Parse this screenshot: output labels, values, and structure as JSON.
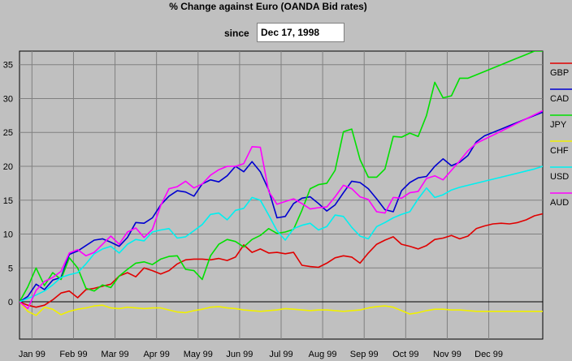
{
  "header": {
    "title": "% Change against Euro (OANDA Bid rates)",
    "since_label": "since",
    "since_value": "Dec 17, 1998"
  },
  "chart_data": {
    "type": "line",
    "title": "% Change against Euro (OANDA Bid rates)",
    "xlabel": "",
    "ylabel": "",
    "xlim": [
      0,
      12.6
    ],
    "ylim": [
      -5.5,
      37
    ],
    "y_ticks": [
      0,
      5,
      10,
      15,
      20,
      25,
      30,
      35
    ],
    "x_tick_labels": [
      "Jan 99",
      "Feb 99",
      "Mar 99",
      "Apr 99",
      "May 99",
      "Jun 99",
      "Jul 99",
      "Aug 99",
      "Sep 99",
      "Oct 99",
      "Nov 99",
      "Dec 99"
    ],
    "x_tick_positions": [
      0.3,
      1.3,
      2.3,
      3.3,
      4.3,
      5.3,
      6.3,
      7.3,
      8.3,
      9.3,
      10.3,
      11.3
    ],
    "grid": true,
    "legend_position": "right",
    "x": [
      0,
      0.2,
      0.4,
      0.6,
      0.8,
      1,
      1.2,
      1.4,
      1.6,
      1.8,
      2,
      2.2,
      2.4,
      2.6,
      2.8,
      3,
      3.2,
      3.4,
      3.6,
      3.8,
      4,
      4.2,
      4.4,
      4.6,
      4.8,
      5,
      5.2,
      5.4,
      5.6,
      5.8,
      6,
      6.2,
      6.4,
      6.6,
      6.8,
      7,
      7.2,
      7.4,
      7.6,
      7.8,
      8,
      8.2,
      8.4,
      8.6,
      8.8,
      9,
      9.2,
      9.4,
      9.6,
      9.8,
      10,
      10.2,
      10.4,
      10.6,
      10.8,
      11,
      11.2,
      11.4,
      11.6,
      11.8,
      12,
      12.2,
      12.4,
      12.6
    ],
    "series": [
      {
        "name": "GBP",
        "color": "#e00000",
        "values": [
          0,
          -0.5,
          -0.8,
          -0.5,
          0.3,
          1.3,
          1.6,
          0.6,
          1.8,
          2,
          2.3,
          2.6,
          3.8,
          4.3,
          3.7,
          5,
          4.6,
          4.1,
          4.6,
          5.6,
          6.2,
          6.3,
          6.3,
          6.2,
          6.4,
          6.1,
          6.6,
          8.4,
          7.3,
          7.8,
          7.2,
          7.3,
          7.1,
          7.3,
          5.4,
          5.2,
          5.1,
          5.7,
          6.5,
          6.8,
          6.6,
          5.7,
          7.2,
          8.5,
          9.1,
          9.6,
          8.5,
          8.2,
          7.8,
          8.3,
          9.2,
          9.4,
          9.8,
          9.3,
          9.7,
          10.8,
          11.2,
          11.5,
          11.6,
          11.5,
          11.7,
          12.1,
          12.7,
          13
        ]
      },
      {
        "name": "CAD",
        "color": "#0000d0",
        "values": [
          0,
          0.8,
          2.6,
          1.8,
          3.2,
          3.6,
          7,
          7.5,
          8.3,
          9.1,
          9.3,
          8.8,
          8.2,
          9.5,
          11.7,
          11.6,
          12.4,
          14.3,
          15.6,
          16.4,
          16.2,
          15.6,
          17.4,
          18,
          17.7,
          18.6,
          20,
          19.2,
          20.7,
          19.2,
          16.5,
          12.4,
          12.6,
          14.5,
          15.3,
          15.5,
          14.5,
          13.4,
          14.3,
          16.1,
          17.8,
          17.6,
          16.7,
          15.2,
          13.6,
          13.3,
          16.4,
          17.6,
          18.3,
          18.5,
          20,
          21.1,
          20.1,
          20.6,
          21.6,
          23.6,
          24.5,
          25,
          25.5,
          26,
          26.5,
          27,
          27.5,
          28
        ]
      },
      {
        "name": "JPY",
        "color": "#00e000",
        "values": [
          0,
          2.2,
          5,
          2.4,
          4.3,
          3.3,
          6.5,
          5,
          2,
          1.6,
          2.5,
          2.1,
          3.8,
          4.8,
          5.7,
          5.9,
          5.5,
          6.3,
          6.7,
          6.8,
          4.8,
          4.6,
          3.3,
          6.8,
          8.5,
          9.2,
          8.9,
          8.1,
          9.2,
          9.8,
          10.8,
          10.1,
          10.3,
          10.7,
          13.5,
          16.7,
          17.3,
          17.5,
          19.4,
          25.1,
          25.5,
          21,
          18.4,
          18.4,
          19.6,
          24.4,
          24.3,
          24.9,
          24.4,
          27.5,
          32.4,
          30.1,
          30.4,
          33,
          33,
          33.5,
          34,
          34.5,
          35,
          35.5,
          36,
          36.5,
          37,
          37
        ]
      },
      {
        "name": "CHF",
        "color": "#f0f000",
        "values": [
          0,
          -1.4,
          -2,
          -0.8,
          -1.1,
          -1.9,
          -1.4,
          -1.1,
          -0.9,
          -0.6,
          -0.5,
          -0.9,
          -1,
          -0.8,
          -0.9,
          -1,
          -0.9,
          -0.9,
          -1.2,
          -1.5,
          -1.6,
          -1.3,
          -1.1,
          -0.8,
          -0.7,
          -0.9,
          -1,
          -1.2,
          -1.3,
          -1.4,
          -1.3,
          -1.2,
          -1,
          -1.1,
          -1.2,
          -1.3,
          -1.2,
          -1.2,
          -1.3,
          -1.4,
          -1.3,
          -1.2,
          -0.9,
          -0.7,
          -0.6,
          -0.8,
          -1.3,
          -1.8,
          -1.6,
          -1.3,
          -1.1,
          -1.1,
          -1.2,
          -1.2,
          -1.3,
          -1.4,
          -1.4,
          -1.4,
          -1.4,
          -1.4,
          -1.4,
          -1.4,
          -1.4,
          -1.4
        ]
      },
      {
        "name": "USD",
        "color": "#00f0f0",
        "values": [
          0,
          0.5,
          1,
          1.6,
          2.5,
          3.6,
          4,
          4.3,
          5.6,
          7.1,
          7.8,
          8.2,
          7.2,
          8.5,
          9.2,
          9,
          10.3,
          10.6,
          10.8,
          9.4,
          9.6,
          10.5,
          11.4,
          12.9,
          13.1,
          12.1,
          13.5,
          13.8,
          15.4,
          15,
          12.8,
          10.5,
          9.1,
          10.8,
          11.3,
          11.6,
          10.6,
          11.1,
          12.8,
          12.6,
          11,
          9.7,
          9.3,
          11.1,
          11.7,
          12.4,
          12.9,
          13.3,
          15.2,
          16.8,
          15.4,
          15.8,
          16.5,
          16.9,
          17.2,
          17.5,
          17.8,
          18.1,
          18.4,
          18.7,
          19,
          19.3,
          19.6,
          20
        ]
      },
      {
        "name": "AUD",
        "color": "#ff00ff",
        "values": [
          0,
          -1,
          1.7,
          3,
          3.6,
          4.5,
          7.2,
          7.7,
          6.8,
          7.3,
          8.5,
          9.7,
          8.5,
          10.3,
          10.9,
          9.5,
          10.7,
          14.2,
          16.7,
          17,
          17.8,
          16.8,
          17.4,
          18.7,
          19.5,
          20,
          20,
          20.4,
          22.9,
          22.8,
          16.3,
          14.4,
          14.8,
          15.2,
          14.5,
          13.7,
          13.9,
          14,
          15.5,
          17.2,
          16.7,
          15.5,
          15.1,
          13.3,
          13.1,
          15.4,
          15.3,
          16.1,
          16.3,
          18.2,
          18.6,
          18,
          19.4,
          20.8,
          22.3,
          23.4,
          24,
          24.6,
          25.2,
          25.8,
          26.4,
          27,
          27.6,
          28.2
        ]
      }
    ]
  }
}
